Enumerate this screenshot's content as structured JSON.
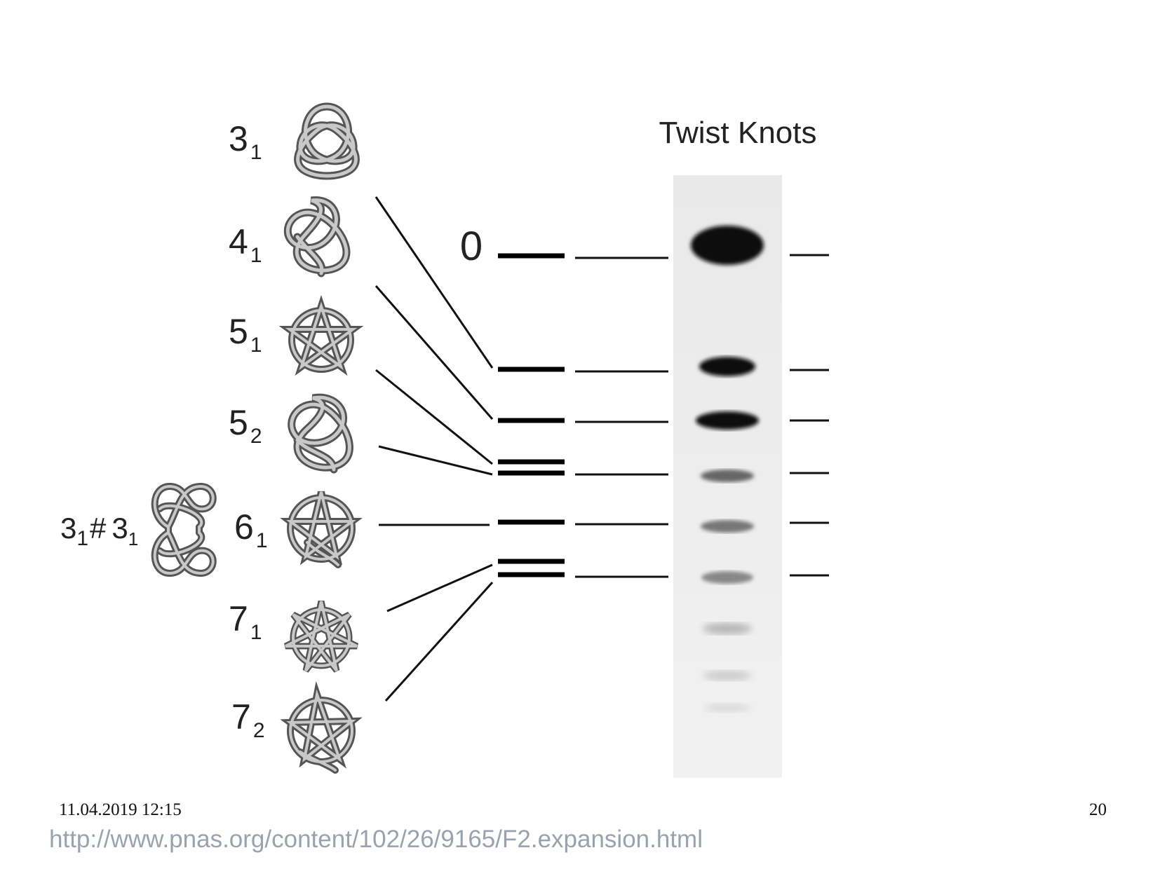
{
  "title": "Twist Knots",
  "band0_label": "0",
  "knots": [
    {
      "main": "3",
      "sub": "1"
    },
    {
      "main": "4",
      "sub": "1"
    },
    {
      "main": "5",
      "sub": "1"
    },
    {
      "main": "5",
      "sub": "2"
    },
    {
      "main": "6",
      "sub": "1"
    },
    {
      "main": "7",
      "sub": "1"
    },
    {
      "main": "7",
      "sub": "2"
    }
  ],
  "composite": {
    "a": "3",
    "a_sub": "1",
    "hash": "#",
    "b": "3",
    "b_sub": "1"
  },
  "footer": {
    "date": "11.04.2019 12:15",
    "page": "20",
    "url": "http://www.pnas.org/content/102/26/9165/F2.expansion.html"
  }
}
